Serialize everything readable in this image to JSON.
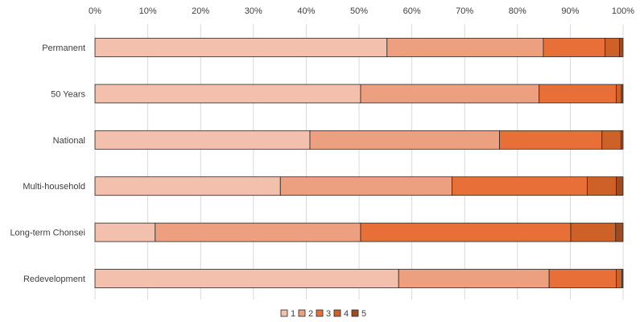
{
  "chart_data": {
    "type": "bar",
    "orientation": "horizontal",
    "stacked": "percent",
    "categories": [
      "Permanent",
      "50 Years",
      "National",
      "Multi-household",
      "Long-term Chonsei",
      "Redevelopment"
    ],
    "series": [
      {
        "name": "1",
        "color": "#F2C0AD",
        "values": [
          55.3,
          50.3,
          40.7,
          35.1,
          11.4,
          57.5
        ]
      },
      {
        "name": "2",
        "color": "#EDA07F",
        "values": [
          29.6,
          33.8,
          35.9,
          32.5,
          38.9,
          28.5
        ]
      },
      {
        "name": "3",
        "color": "#E87038",
        "values": [
          11.7,
          14.6,
          19.4,
          25.6,
          39.8,
          12.7
        ]
      },
      {
        "name": "4",
        "color": "#CD6128",
        "values": [
          2.7,
          1.0,
          3.6,
          5.5,
          8.5,
          1.1
        ]
      },
      {
        "name": "5",
        "color": "#9F4A1F",
        "values": [
          0.7,
          0.3,
          0.4,
          1.3,
          1.4,
          0.2
        ]
      }
    ],
    "x_ticks": [
      "0%",
      "10%",
      "20%",
      "30%",
      "40%",
      "50%",
      "60%",
      "70%",
      "80%",
      "90%",
      "100%"
    ],
    "xlim": [
      0,
      100
    ],
    "title": "",
    "xlabel": "",
    "ylabel": "",
    "grid": true,
    "legend_position": "bottom"
  }
}
